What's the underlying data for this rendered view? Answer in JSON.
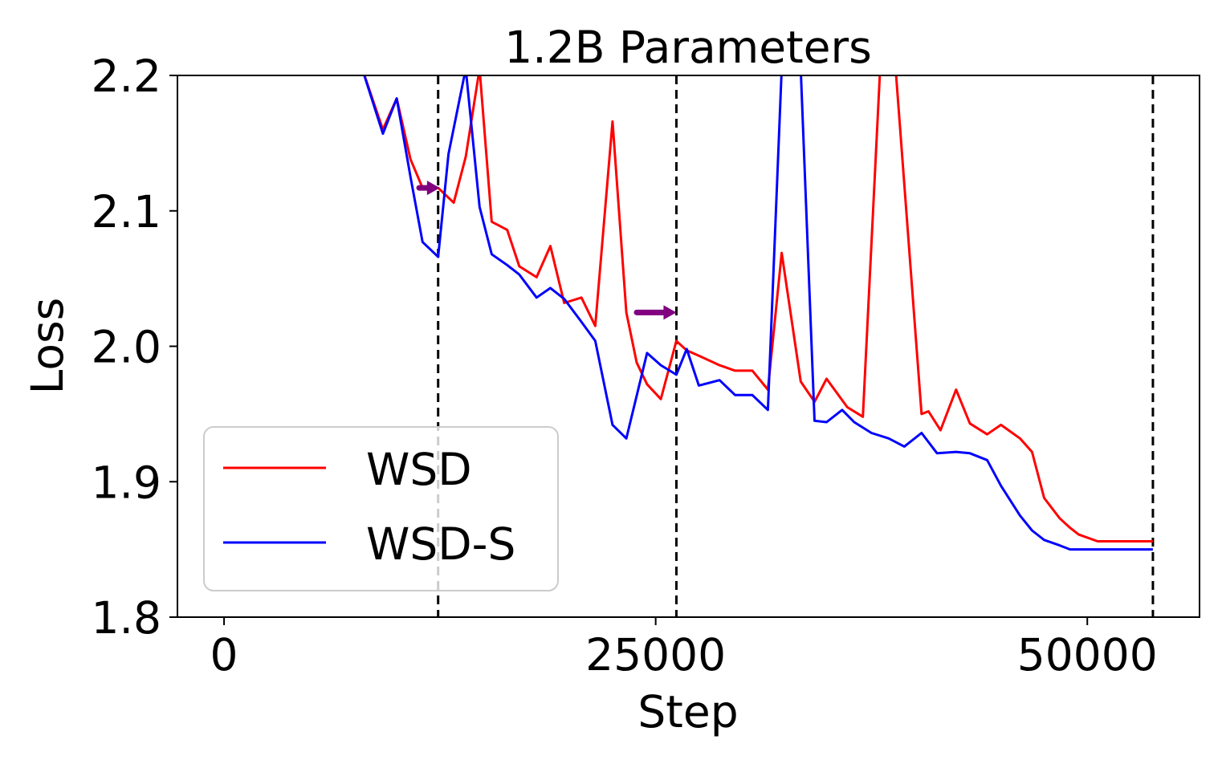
{
  "chart_data": {
    "type": "line",
    "title": "1.2B Parameters",
    "xlabel": "Step",
    "ylabel": "Loss",
    "xlim": [
      -2700,
      56500
    ],
    "ylim": [
      1.8,
      2.2
    ],
    "xticks": [
      0,
      25000,
      50000
    ],
    "xtick_labels": [
      "0",
      "25000",
      "50000"
    ],
    "yticks": [
      1.8,
      1.9,
      2.0,
      2.1,
      2.2
    ],
    "ytick_labels": [
      "1.8",
      "1.9",
      "2.0",
      "2.1",
      "2.2"
    ],
    "grid": false,
    "legend_position": "lower-left",
    "vlines": [
      12400,
      26200,
      53800
    ],
    "arrows": [
      {
        "x_start": 11300,
        "x_end": 12500,
        "y": 2.117,
        "color": "#800080"
      },
      {
        "x_start": 23900,
        "x_end": 26200,
        "y": 2.025,
        "color": "#800080"
      }
    ],
    "series": [
      {
        "name": "WSD",
        "color": "#ff0000",
        "x": [
          8000,
          9200,
          10000,
          10800,
          11500,
          12400,
          13300,
          14000,
          14800,
          15500,
          16400,
          17100,
          18100,
          18900,
          19700,
          20700,
          21500,
          22500,
          23300,
          23900,
          24500,
          25300,
          26200,
          26800,
          27500,
          28700,
          29600,
          30600,
          31500,
          32300,
          33400,
          34200,
          34900,
          36100,
          37000,
          38000,
          38500,
          38700,
          38900,
          40400,
          40800,
          41500,
          42400,
          43200,
          44200,
          45000,
          46100,
          46800,
          47500,
          48400,
          49000,
          49500,
          50600,
          51500,
          52400,
          53000,
          53800
        ],
        "y": [
          2.205,
          2.16,
          2.183,
          2.138,
          2.117,
          2.117,
          2.106,
          2.14,
          2.205,
          2.092,
          2.086,
          2.059,
          2.051,
          2.074,
          2.032,
          2.036,
          2.015,
          2.166,
          2.025,
          1.988,
          1.972,
          1.961,
          2.004,
          1.997,
          1.993,
          1.986,
          1.982,
          1.982,
          1.968,
          2.069,
          1.974,
          1.959,
          1.976,
          1.955,
          1.948,
          2.205,
          2.205,
          2.205,
          2.205,
          1.95,
          1.952,
          1.938,
          1.968,
          1.943,
          1.935,
          1.942,
          1.932,
          1.922,
          1.888,
          1.873,
          1.866,
          1.861,
          1.856,
          1.856,
          1.856,
          1.856,
          1.856
        ]
      },
      {
        "name": "WSD-S",
        "color": "#0000ff",
        "x": [
          8000,
          9200,
          10000,
          10800,
          11500,
          12400,
          13000,
          14000,
          14800,
          15500,
          16400,
          17100,
          18100,
          18900,
          19700,
          20700,
          21500,
          22500,
          23300,
          24500,
          25300,
          26200,
          26800,
          27500,
          28700,
          29600,
          30600,
          31500,
          32300,
          33400,
          34200,
          34900,
          35800,
          36500,
          37500,
          38500,
          39400,
          40400,
          41300,
          42400,
          43200,
          44200,
          45000,
          46100,
          46800,
          47500,
          48400,
          49000,
          49500,
          50600,
          51500,
          52400,
          53000,
          53800
        ],
        "y": [
          2.205,
          2.157,
          2.183,
          2.125,
          2.077,
          2.066,
          2.142,
          2.205,
          2.103,
          2.068,
          2.06,
          2.053,
          2.036,
          2.043,
          2.035,
          2.018,
          2.004,
          1.942,
          1.932,
          1.995,
          1.986,
          1.979,
          1.998,
          1.971,
          1.975,
          1.964,
          1.964,
          1.953,
          2.205,
          2.205,
          1.945,
          1.944,
          1.953,
          1.944,
          1.936,
          1.932,
          1.926,
          1.936,
          1.921,
          1.922,
          1.921,
          1.916,
          1.897,
          1.875,
          1.864,
          1.857,
          1.853,
          1.85,
          1.85,
          1.85,
          1.85,
          1.85,
          1.85,
          1.85
        ]
      }
    ]
  }
}
